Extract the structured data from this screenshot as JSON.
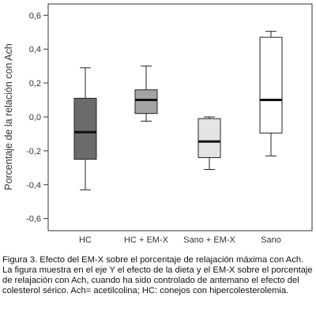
{
  "chart_data": {
    "type": "box",
    "ylabel": "Porcentaje de la relación con Ach",
    "ylim": [
      -0.7,
      0.65
    ],
    "yticks": [
      0.6,
      0.4,
      0.2,
      0.0,
      -0.2,
      -0.4,
      -0.6
    ],
    "ytick_labels": [
      "0,6",
      "0,4",
      "0,2",
      "0,0",
      "-0,2",
      "-0,4",
      "-0,6"
    ],
    "categories": [
      "HC",
      "HC + EM-X",
      "Sano + EM-X",
      "Sano"
    ],
    "boxes": [
      {
        "category": "HC",
        "whisker_low": -0.43,
        "q1": -0.25,
        "median": -0.09,
        "q3": 0.11,
        "whisker_high": 0.29,
        "color": "#6b6b6b"
      },
      {
        "category": "HC + EM-X",
        "whisker_low": -0.025,
        "q1": 0.02,
        "median": 0.1,
        "q3": 0.16,
        "whisker_high": 0.3,
        "color": "#a3a3a3"
      },
      {
        "category": "Sano + EM-X",
        "whisker_low": -0.31,
        "q1": -0.24,
        "median": -0.145,
        "q3": -0.01,
        "whisker_high": 0.0,
        "color": "#e4e4e4"
      },
      {
        "category": "Sano",
        "whisker_low": -0.23,
        "q1": -0.095,
        "median": 0.1,
        "q3": 0.47,
        "whisker_high": 0.505,
        "color": "#ffffff"
      }
    ],
    "grid": false,
    "legend": "none"
  },
  "caption": "Figura 3. Efecto del EM-X sobre el porcentaje de relajación máxima con Ach. La figura muestra en el eje Y el efecto de la dieta y el EM-X sobre el porcentaje de relajación con Ach, cuando ha sido controlado de antemano el efecto del colesterol sérico. Ach= acetilcolina; HC: conejos con hipercolesterolemia."
}
